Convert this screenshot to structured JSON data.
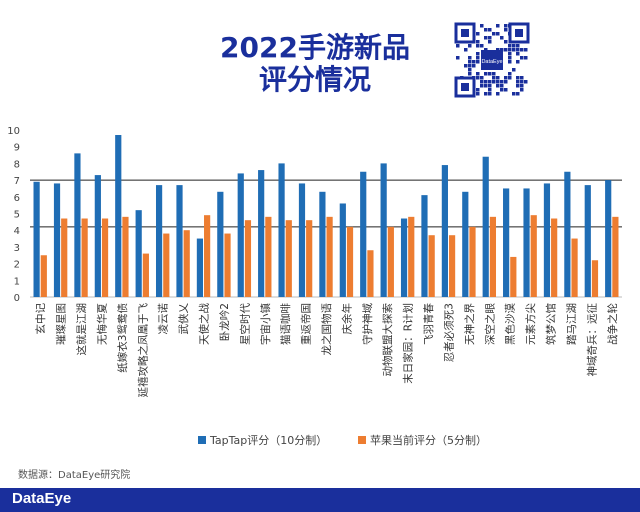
{
  "header": {
    "title_line1": "2022手游新品",
    "title_line2": "评分情况",
    "qr_center_label": "DataEye"
  },
  "source": "数据源：DataEye研究院",
  "footer": {
    "logo": "DataEye"
  },
  "chart_data": {
    "type": "bar",
    "ylim": [
      0,
      10
    ],
    "yticks": [
      0,
      1,
      2,
      3,
      4,
      5,
      6,
      7,
      8,
      9,
      10
    ],
    "grid": false,
    "reference_lines": [
      7,
      4.2
    ],
    "legend_position": "bottom",
    "categories": [
      "玄中记",
      "璀璨星图",
      "这就是江湖",
      "无悔华夏",
      "纸嫁衣3鸳鸯债",
      "延禧攻略之凤凰于飞",
      "凌云诺",
      "武侠乂",
      "天使之战",
      "卧龙吟2",
      "星空时代",
      "宇宙小镇",
      "猫语咖啡",
      "重返帝国",
      "龙之国物语",
      "庆余年",
      "守护神域",
      "动物联盟大探索",
      "末日家园：R计划",
      "飞羽青春",
      "忍者必须死3",
      "无神之界",
      "深空之眼",
      "黑色沙漠",
      "元素方尖",
      "筑梦公馆",
      "踏马江湖",
      "神域奇兵：远征",
      "战争之轮"
    ],
    "series": [
      {
        "name": "TapTap评分（10分制）",
        "color": "#1f6db5",
        "values": [
          6.9,
          6.8,
          8.6,
          7.3,
          9.7,
          5.2,
          6.7,
          6.7,
          3.5,
          6.3,
          7.4,
          7.6,
          8.0,
          6.8,
          6.3,
          5.6,
          7.5,
          8.0,
          4.7,
          6.1,
          7.9,
          6.3,
          8.4,
          6.5,
          6.5,
          6.8,
          7.5,
          6.7,
          7.0
        ]
      },
      {
        "name": "苹果当前评分（5分制）",
        "color": "#ed7d31",
        "values": [
          2.5,
          4.7,
          4.7,
          4.7,
          4.8,
          2.6,
          3.8,
          4.0,
          4.9,
          3.8,
          4.6,
          4.8,
          4.6,
          4.6,
          4.8,
          4.2,
          2.8,
          4.2,
          4.8,
          3.7,
          3.7,
          4.2,
          4.8,
          2.4,
          4.9,
          4.7,
          3.5,
          2.2,
          4.8
        ]
      }
    ]
  }
}
